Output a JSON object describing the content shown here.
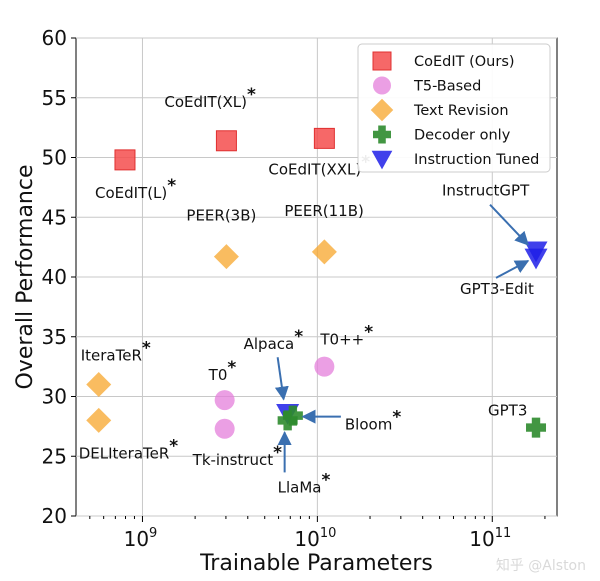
{
  "chart_data": {
    "type": "scatter",
    "xlabel": "Trainable Parameters",
    "ylabel": "Overall Performance",
    "xscale": "log",
    "xlim_exp": [
      8.62,
      11.37
    ],
    "ylim": [
      20,
      60
    ],
    "yticks": [
      "20",
      "25",
      "30",
      "35",
      "40",
      "45",
      "50",
      "55",
      "60"
    ],
    "xticks": [
      {
        "base": "10",
        "exp": "9",
        "value_exp": 9
      },
      {
        "base": "10",
        "exp": "10",
        "value_exp": 10
      },
      {
        "base": "10",
        "exp": "11",
        "value_exp": 11
      }
    ],
    "grid": true,
    "legend_position": "top-right",
    "legend": [
      {
        "key": "coedit",
        "label": "CoEdIT (Ours)",
        "shape": "square",
        "color": "#f44e4e"
      },
      {
        "key": "t5",
        "label": "T5-Based",
        "shape": "circle",
        "color": "#e47fdb"
      },
      {
        "key": "text_revision",
        "label": "Text Revision",
        "shape": "diamond",
        "color": "#f7a52b"
      },
      {
        "key": "decoder",
        "label": "Decoder only",
        "shape": "plus",
        "color": "#2e8b2e"
      },
      {
        "key": "instruction",
        "label": "Instruction Tuned",
        "shape": "triangle-down",
        "color": "#1f1fe8"
      }
    ],
    "points": [
      {
        "name": "CoEdIT(L)",
        "star": true,
        "series": "coedit",
        "x_exp": 8.9,
        "y": 49.8
      },
      {
        "name": "CoEdIT(XL)",
        "star": true,
        "series": "coedit",
        "x_exp": 9.48,
        "y": 51.4
      },
      {
        "name": "CoEdIT(XXL)",
        "star": true,
        "series": "coedit",
        "x_exp": 10.04,
        "y": 51.6
      },
      {
        "name": "PEER(3B)",
        "star": false,
        "series": "text_revision",
        "x_exp": 9.48,
        "y": 41.7
      },
      {
        "name": "PEER(11B)",
        "star": false,
        "series": "text_revision",
        "x_exp": 10.04,
        "y": 42.1
      },
      {
        "name": "IteraTeR",
        "star": true,
        "series": "text_revision",
        "x_exp": 8.75,
        "y": 31.0
      },
      {
        "name": "DELIteraTeR",
        "star": true,
        "series": "text_revision",
        "x_exp": 8.75,
        "y": 28.0
      },
      {
        "name": "T0",
        "star": true,
        "series": "t5",
        "x_exp": 9.47,
        "y": 29.7
      },
      {
        "name": "Tk-instruct",
        "star": true,
        "series": "t5",
        "x_exp": 9.47,
        "y": 27.3
      },
      {
        "name": "T0++",
        "star": true,
        "series": "t5",
        "x_exp": 10.04,
        "y": 32.5
      },
      {
        "name": "Alpaca",
        "star": true,
        "series": "instruction",
        "x_exp": 9.83,
        "y": 28.6
      },
      {
        "name": "Bloom",
        "star": true,
        "series": "decoder",
        "x_exp": 9.86,
        "y": 28.4
      },
      {
        "name": "LlaMa",
        "star": true,
        "series": "decoder",
        "x_exp": 9.83,
        "y": 28.0
      },
      {
        "name": "InstructGPT",
        "star": false,
        "series": "instruction",
        "x_exp": 11.25,
        "y": 42.2
      },
      {
        "name": "GPT3-Edit",
        "star": false,
        "series": "instruction",
        "x_exp": 11.25,
        "y": 41.6
      },
      {
        "name": "GPT3",
        "star": false,
        "series": "decoder",
        "x_exp": 11.25,
        "y": 27.4
      }
    ],
    "annotation_star": "*"
  },
  "watermark": "知乎 @Alston"
}
